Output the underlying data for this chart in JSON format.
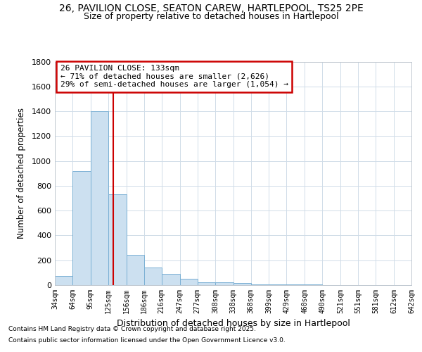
{
  "title_line1": "26, PAVILION CLOSE, SEATON CAREW, HARTLEPOOL, TS25 2PE",
  "title_line2": "Size of property relative to detached houses in Hartlepool",
  "xlabel": "Distribution of detached houses by size in Hartlepool",
  "ylabel": "Number of detached properties",
  "footnote_line1": "Contains HM Land Registry data © Crown copyright and database right 2025.",
  "footnote_line2": "Contains public sector information licensed under the Open Government Licence v3.0.",
  "bar_edges": [
    34,
    64,
    95,
    125,
    156,
    186,
    216,
    247,
    277,
    308,
    338,
    368,
    399,
    429,
    460,
    490,
    521,
    551,
    581,
    612,
    642
  ],
  "bar_heights": [
    75,
    920,
    1400,
    730,
    245,
    140,
    90,
    50,
    25,
    20,
    15,
    8,
    5,
    4,
    3,
    2,
    1,
    1,
    0,
    1
  ],
  "bar_color": "#cce0f0",
  "bar_edgecolor": "#7ab0d4",
  "property_size": 133,
  "annotation_title": "26 PAVILION CLOSE: 133sqm",
  "annotation_line1": "← 71% of detached houses are smaller (2,626)",
  "annotation_line2": "29% of semi-detached houses are larger (1,054) →",
  "vline_color": "#cc0000",
  "annotation_box_edgecolor": "#cc0000",
  "ylim": [
    0,
    1800
  ],
  "xlim": [
    34,
    642
  ],
  "yticks": [
    0,
    200,
    400,
    600,
    800,
    1000,
    1200,
    1400,
    1600,
    1800
  ]
}
